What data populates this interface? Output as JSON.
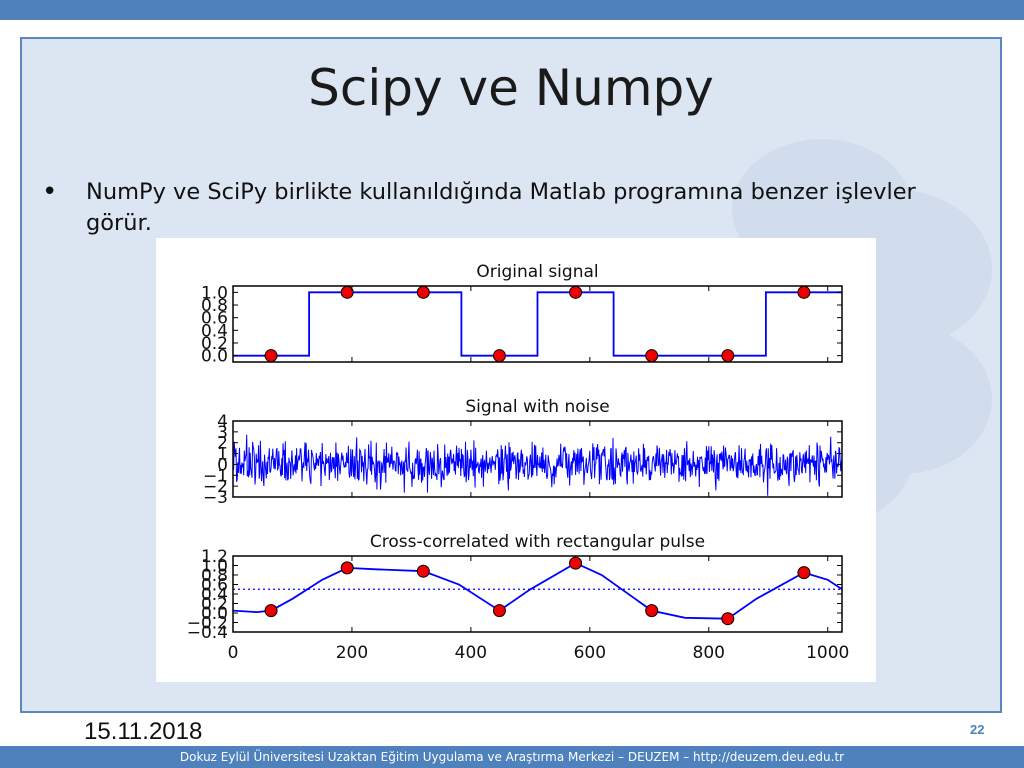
{
  "slide": {
    "title": "Scipy ve Numpy",
    "bullet": "NumPy ve SciPy birlikte kullanıldığında Matlab programına benzer işlevler görür.",
    "date": "15.11.2018",
    "page_number": "22",
    "footer": "Dokuz Eylül Üniversitesi Uzaktan Eğitim Uygulama ve Araştırma Merkezi – DEUZEM – http://deuzem.deu.edu.tr"
  },
  "colors": {
    "line": "#0000ff",
    "marker": "#ee0000",
    "accent": "#4f81bd"
  },
  "chart_data": [
    {
      "type": "line",
      "title": "Original signal",
      "xlim": [
        0,
        1024
      ],
      "ylim": [
        -0.1,
        1.1
      ],
      "yticks": [
        "1.0",
        "0.8",
        "0.6",
        "0.4",
        "0.2",
        "0.0"
      ],
      "ytick_values": [
        1.0,
        0.8,
        0.6,
        0.4,
        0.2,
        0.0
      ],
      "xticks": [],
      "series": [
        {
          "x": [
            0,
            128,
            128,
            384,
            384,
            512,
            512,
            640,
            640,
            896,
            896,
            1024
          ],
          "values": [
            0,
            0,
            1,
            1,
            0,
            0,
            1,
            1,
            0,
            0,
            1,
            1
          ]
        }
      ],
      "markers": {
        "x": [
          64,
          192,
          320,
          448,
          576,
          704,
          832,
          960
        ],
        "values": [
          0,
          1,
          1,
          0,
          1,
          0,
          0,
          1
        ]
      }
    },
    {
      "type": "line",
      "title": "Signal with noise",
      "xlim": [
        0,
        1024
      ],
      "ylim": [
        -3,
        4
      ],
      "yticks": [
        "4",
        "3",
        "2",
        "1",
        "0",
        "−1",
        "−2",
        "−3"
      ],
      "ytick_values": [
        4,
        3,
        2,
        1,
        0,
        -1,
        -2,
        -3
      ],
      "xticks": [],
      "noise": {
        "count": 1024,
        "sigma": 1.0
      }
    },
    {
      "type": "line",
      "title": "Cross-correlated with rectangular pulse",
      "xlim": [
        0,
        1024
      ],
      "ylim": [
        -0.4,
        1.2
      ],
      "yticks": [
        "1.2",
        "1.0",
        "0.8",
        "0.6",
        "0.4",
        "0.2",
        "0.0",
        "−0.2",
        "−0.4"
      ],
      "ytick_values": [
        1.2,
        1.0,
        0.8,
        0.6,
        0.4,
        0.2,
        0.0,
        -0.2,
        -0.4
      ],
      "xticks": [
        "0",
        "200",
        "400",
        "600",
        "800",
        "1000"
      ],
      "xtick_values": [
        0,
        200,
        400,
        600,
        800,
        1000
      ],
      "threshold": 0.5,
      "series": [
        {
          "x": [
            0,
            40,
            64,
            100,
            150,
            192,
            240,
            320,
            380,
            448,
            500,
            576,
            620,
            704,
            760,
            832,
            880,
            960,
            1000,
            1024
          ],
          "values": [
            0.05,
            0.02,
            0.05,
            0.3,
            0.7,
            0.95,
            0.92,
            0.88,
            0.6,
            0.05,
            0.5,
            1.05,
            0.8,
            0.05,
            -0.1,
            -0.12,
            0.3,
            0.85,
            0.7,
            0.5
          ]
        }
      ],
      "markers": {
        "x": [
          64,
          192,
          320,
          448,
          576,
          704,
          832,
          960
        ],
        "values": [
          0.05,
          0.95,
          0.88,
          0.05,
          1.05,
          0.05,
          -0.12,
          0.85
        ]
      }
    }
  ]
}
